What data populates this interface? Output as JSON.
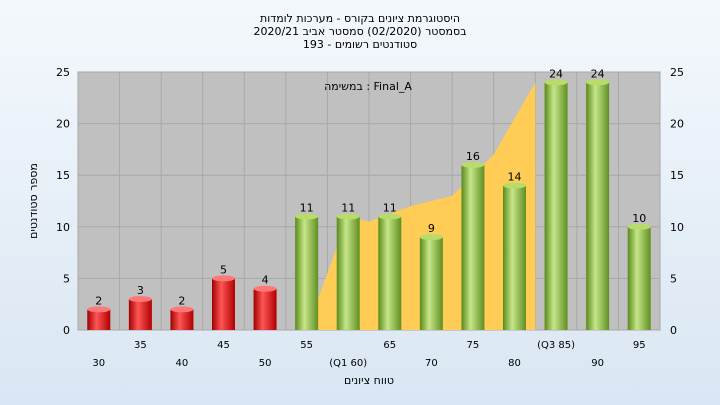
{
  "chart_data": {
    "type": "bar",
    "title_lines": [
      "היסטוגרמת ציונים בקורס - מערכות לומדות",
      "בסמסטר  (02/2020)  סמסטר אביב 2020/21",
      "סטודנטים רשומים - 193"
    ],
    "legend_note": "במשימה : Final_A",
    "xlabel": "טווח ציונים",
    "ylabel": "מספר סטודנטים",
    "ylim": [
      0,
      25
    ],
    "y_ticks": [
      0,
      5,
      10,
      15,
      20,
      25
    ],
    "categories": [
      "30",
      "35",
      "40",
      "45",
      "50",
      "55",
      "(Q1 60)",
      "65",
      "70",
      "75",
      "80",
      "(Q3 85)",
      "90",
      "95"
    ],
    "values": [
      2,
      3,
      2,
      5,
      4,
      11,
      11,
      11,
      9,
      16,
      14,
      24,
      24,
      10
    ],
    "bar_colors": [
      "red",
      "red",
      "red",
      "red",
      "red",
      "green",
      "green",
      "green",
      "green",
      "green",
      "green",
      "green",
      "green",
      "green"
    ],
    "grid": true,
    "overlay": {
      "type": "area",
      "color": "#ffcc55",
      "points": [
        [
          5.5,
          0
        ],
        [
          6.5,
          11
        ],
        [
          7,
          10.5
        ],
        [
          8,
          12
        ],
        [
          9,
          13
        ],
        [
          10,
          17
        ],
        [
          11,
          24
        ]
      ]
    },
    "colors": {
      "red_bar": "#dd2222",
      "green_bar": "#8dbb3c",
      "plot_bg": "#c0c0c0",
      "page_bg": "#dde8f3"
    }
  }
}
